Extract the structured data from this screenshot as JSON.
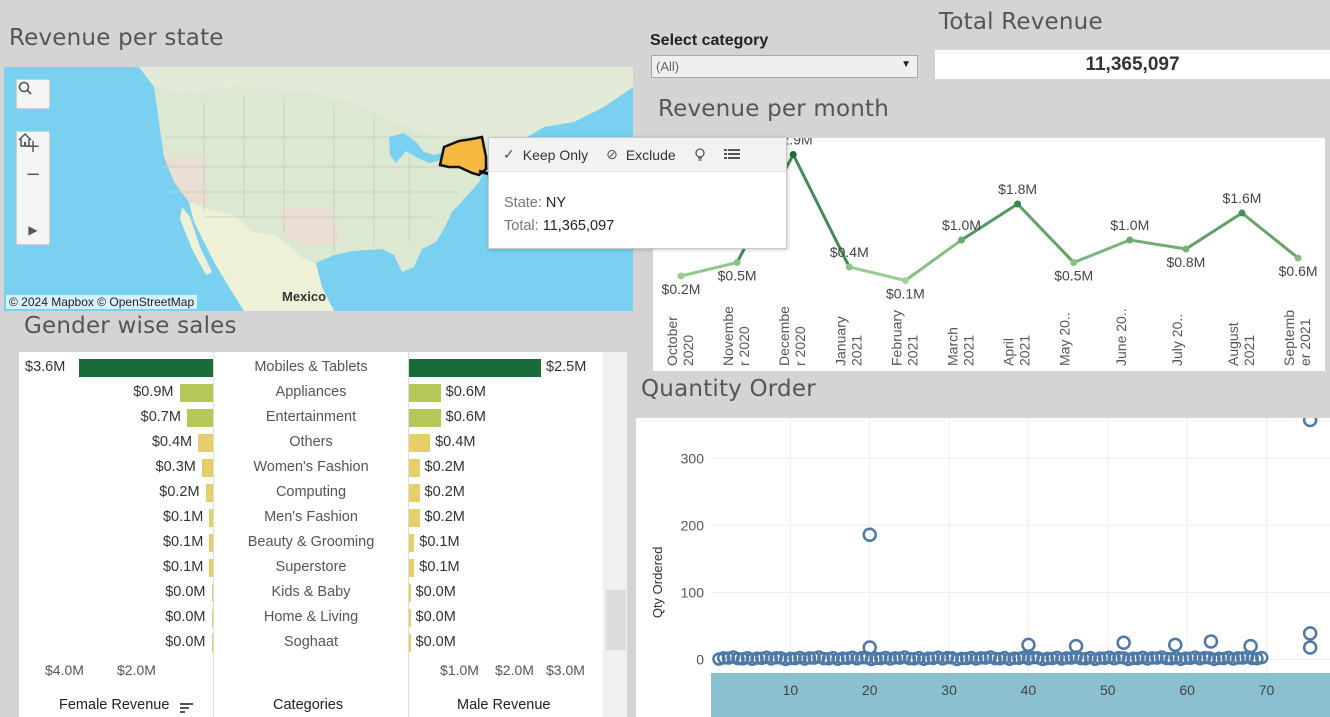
{
  "titles": {
    "revenue_per_state": "Revenue per state",
    "total_revenue": "Total Revenue",
    "revenue_per_month": "Revenue per month",
    "gender_wise_sales": "Gender wise sales",
    "quantity_order": "Quantity Order"
  },
  "filter": {
    "label": "Select category",
    "value": "(All)"
  },
  "total": {
    "value": "11,365,097"
  },
  "map": {
    "attribution": "© 2024 Mapbox  © OpenStreetMap",
    "country_label": "Mexico",
    "highlight_color": "#f5b942",
    "water_color": "#79d0f0",
    "controls": [
      "search-icon",
      "zoom-in-icon",
      "zoom-out-icon",
      "home-icon",
      "play-icon"
    ]
  },
  "tooltip": {
    "actions": [
      {
        "icon": "check-icon",
        "label": "Keep Only"
      },
      {
        "icon": "exclude-icon",
        "label": "Exclude"
      },
      {
        "icon": "lightbulb-icon",
        "label": ""
      },
      {
        "icon": "table-icon",
        "label": ""
      }
    ],
    "rows": [
      {
        "key": "State:",
        "value": "NY"
      },
      {
        "key": "Total:",
        "value": "11,365,097"
      }
    ]
  },
  "chart_data": [
    {
      "type": "line",
      "title": "Revenue per month",
      "categories": [
        "October 2020",
        "November 2020",
        "December 2020",
        "January 2021",
        "February 2021",
        "March 2021",
        "April 2021",
        "May 2021",
        "June 2021",
        "July 2021",
        "August 2021",
        "September 2021"
      ],
      "tick_labels": [
        [
          "October",
          "2020"
        ],
        [
          "Novembe",
          "r 2020"
        ],
        [
          "Decembe",
          "r 2020"
        ],
        [
          "January",
          "2021"
        ],
        [
          "February",
          "2021"
        ],
        [
          "March",
          "2021"
        ],
        [
          "April",
          "2021"
        ],
        [
          "May 20..",
          ""
        ],
        [
          "June 20..",
          ""
        ],
        [
          "July 20..",
          ""
        ],
        [
          "August",
          "2021"
        ],
        [
          "Septemb",
          "er 2021"
        ]
      ],
      "values": [
        0.2,
        0.5,
        2.9,
        0.4,
        0.1,
        1.0,
        1.8,
        0.5,
        1.0,
        0.8,
        1.6,
        0.6
      ],
      "labels": [
        "$0.2M",
        "$0.5M",
        "$2.9M",
        "$0.4M",
        "$0.1M",
        "$1.0M",
        "$1.8M",
        "$0.5M",
        "$1.0M",
        "$0.8M",
        "$1.6M",
        "$0.6M"
      ],
      "ylim": [
        0,
        3.0
      ],
      "color_low": "#a6d99a",
      "color_high": "#1e6b38"
    },
    {
      "type": "bar",
      "title": "Gender wise sales",
      "categories": [
        "Mobiles & Tablets",
        "Appliances",
        "Entertainment",
        "Others",
        "Women's Fashion",
        "Computing",
        "Men's Fashion",
        "Beauty & Grooming",
        "Superstore",
        "Kids & Baby",
        "Home & Living",
        "Soghaat"
      ],
      "series": [
        {
          "name": "Female Revenue",
          "values": [
            3.6,
            0.9,
            0.7,
            0.4,
            0.3,
            0.2,
            0.1,
            0.1,
            0.1,
            0.0,
            0.0,
            0.0
          ],
          "labels": [
            "$3.6M",
            "$0.9M",
            "$0.7M",
            "$0.4M",
            "$0.3M",
            "$0.2M",
            "$0.1M",
            "$0.1M",
            "$0.1M",
            "$0.0M",
            "$0.0M",
            "$0.0M"
          ]
        },
        {
          "name": "Male Revenue",
          "values": [
            2.5,
            0.6,
            0.6,
            0.4,
            0.2,
            0.2,
            0.2,
            0.1,
            0.1,
            0.0,
            0.0,
            0.0
          ],
          "labels": [
            "$2.5M",
            "$0.6M",
            "$0.6M",
            "$0.4M",
            "$0.2M",
            "$0.2M",
            "$0.2M",
            "$0.1M",
            "$0.1M",
            "$0.0M",
            "$0.0M",
            "$0.0M"
          ]
        }
      ],
      "female_axis_ticks": [
        "$4.0M",
        "$2.0M"
      ],
      "male_axis_ticks": [
        "$1.0M",
        "$2.0M",
        "$3.0M"
      ],
      "xlabel_female": "Female Revenue",
      "xlabel_categories": "Categories",
      "xlabel_male": "Male Revenue",
      "color_top": "#1a6b3a",
      "color_mid": "#b5c65a",
      "color_low": "#e6cf6a"
    },
    {
      "type": "scatter",
      "title": "Quantity Order",
      "ylabel": "Qty Ordered",
      "xlabel": "",
      "xlim": [
        0,
        78
      ],
      "ylim": [
        -20,
        360
      ],
      "xticks": [
        10,
        20,
        30,
        40,
        50,
        60,
        70
      ],
      "yticks": [
        0,
        100,
        200,
        300
      ],
      "outliers": [
        [
          75.5,
          357
        ],
        [
          20,
          186
        ],
        [
          75.5,
          39
        ],
        [
          75.5,
          18
        ],
        [
          63,
          27
        ],
        [
          58.5,
          22
        ],
        [
          52,
          25
        ],
        [
          68,
          20
        ],
        [
          40,
          22
        ],
        [
          46,
          20
        ],
        [
          20,
          18
        ]
      ],
      "cluster_x_range": [
        1,
        70
      ],
      "color": "#4e79a7"
    }
  ]
}
